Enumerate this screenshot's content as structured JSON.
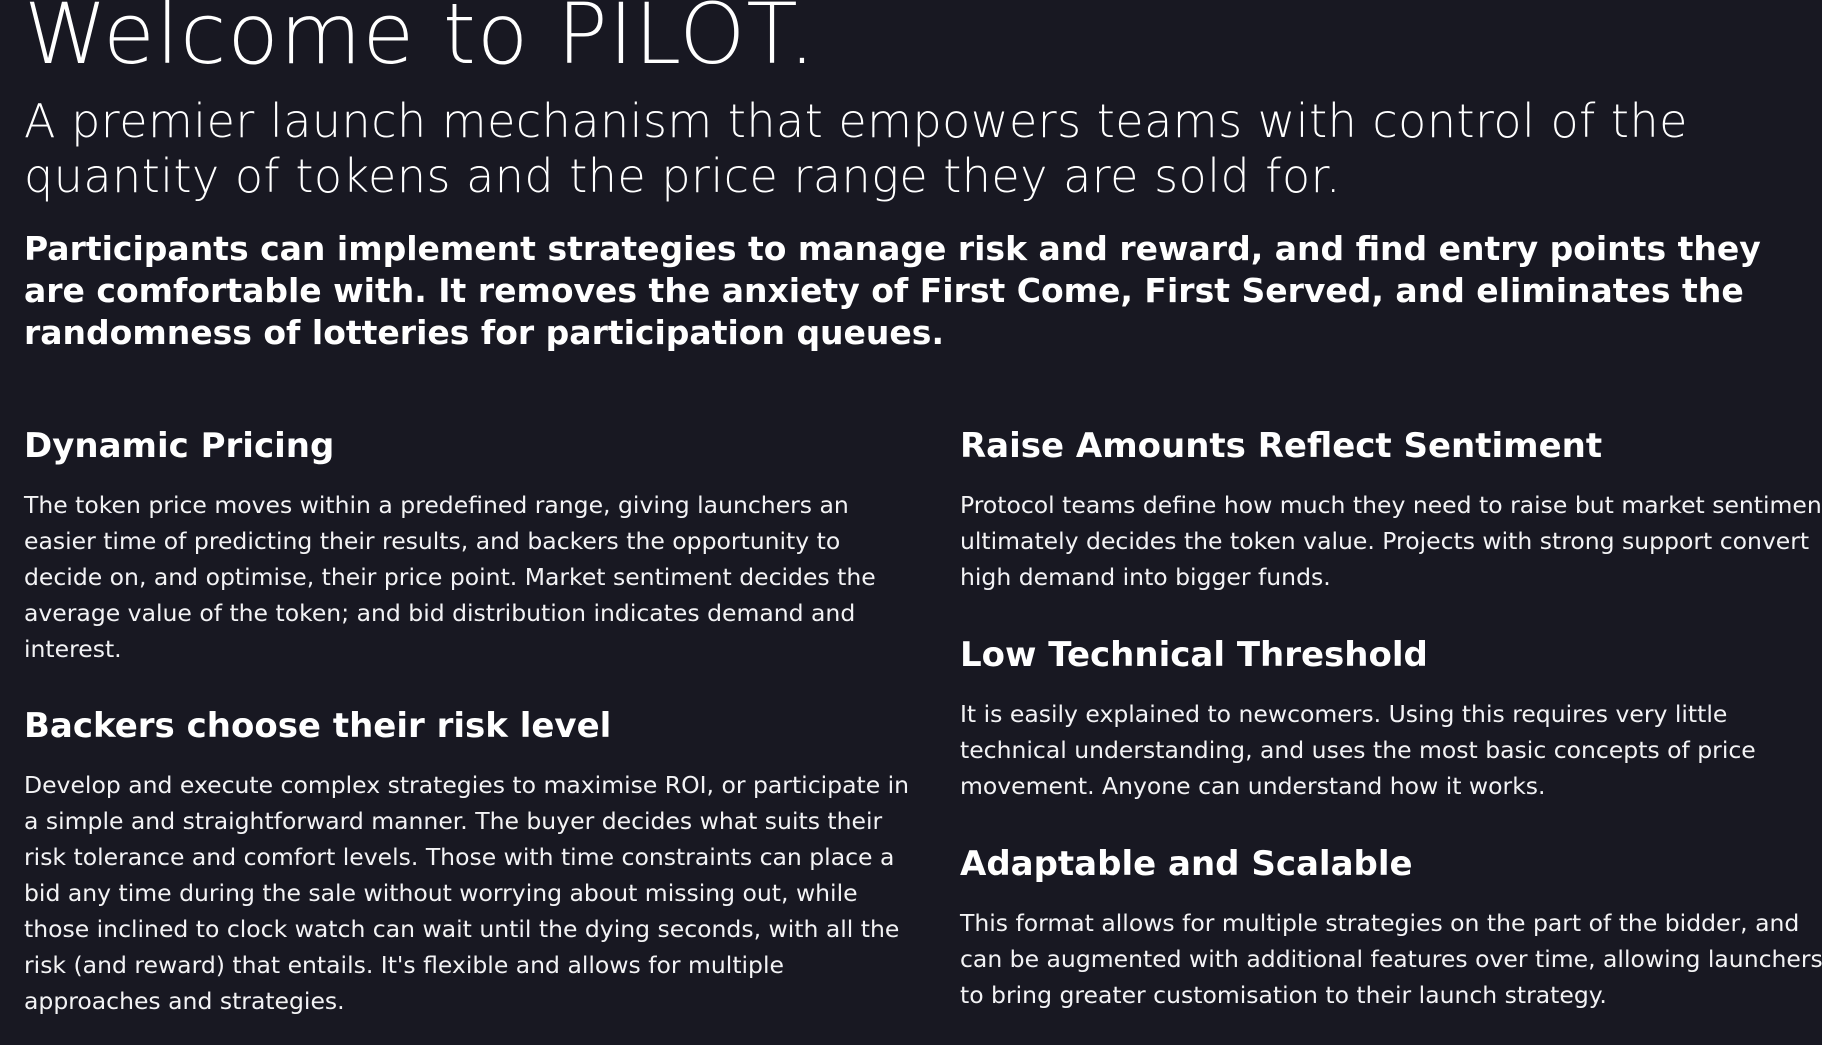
{
  "hero": {
    "title": "Welcome to PILOT.",
    "subtitle": "A premier launch mechanism that empowers teams with control of the quantity of tokens and the price range they are sold for.",
    "lead": "Participants can implement strategies to manage risk and reward, and find entry points they are comfortable with. It removes the anxiety of First Come, First Served, and eliminates the randomness of lotteries for participation queues."
  },
  "features": {
    "dynamic_pricing": {
      "title": "Dynamic Pricing",
      "body": "The token price moves within a predefined range, giving launchers an easier time of predicting their results, and backers the opportunity to decide on, and optimise, their price point. Market sentiment decides the average value of the token; and bid distribution indicates demand and interest."
    },
    "risk_level": {
      "title": "Backers choose their risk level",
      "body": "Develop and execute complex strategies to maximise ROI, or participate in a simple and straightforward manner. The buyer decides what suits their risk tolerance and comfort levels. Those with time constraints can place a bid any time during the sale without worrying about missing out, while those inclined to clock watch can wait until the dying seconds, with all the risk (and reward) that entails. It's flexible and allows for multiple approaches and strategies."
    },
    "raise_amounts": {
      "title": "Raise Amounts Reflect Sentiment",
      "body": "Protocol teams define how much they need to raise but market sentiment ultimately decides the token value. Projects with strong support convert high demand into bigger funds."
    },
    "low_threshold": {
      "title": "Low Technical Threshold",
      "body": "It is easily explained to newcomers. Using this requires very little technical understanding, and uses the most basic concepts of price movement. Anyone can understand how it works."
    },
    "adaptable": {
      "title": "Adaptable and Scalable",
      "body": "This format allows for multiple strategies on the part of the bidder, and can be augmented with additional features over time, allowing launchers to bring greater customisation to their launch strategy."
    }
  }
}
